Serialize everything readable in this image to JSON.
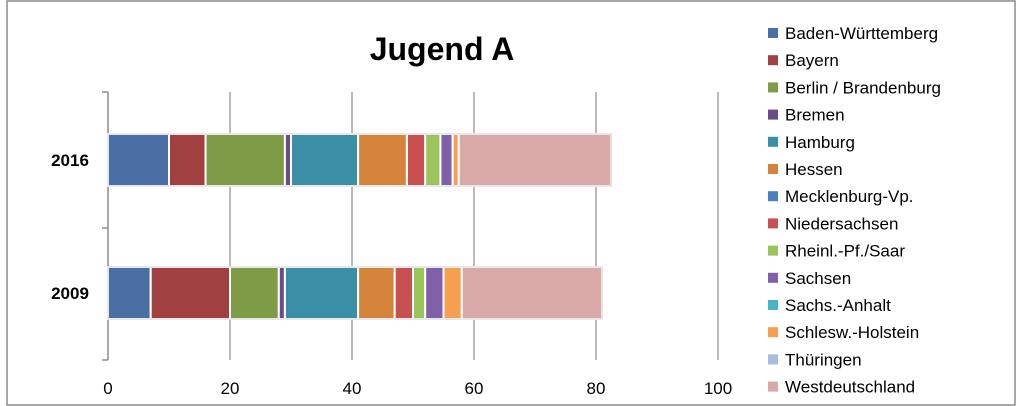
{
  "chart_data": {
    "type": "bar",
    "orientation": "horizontal",
    "stacked": true,
    "title": "Jugend A",
    "xlabel": "",
    "ylabel": "",
    "xlim": [
      0,
      100
    ],
    "xticks": [
      0,
      20,
      40,
      60,
      80,
      100
    ],
    "grid": true,
    "legend_position": "right",
    "categories": [
      "2016",
      "2009"
    ],
    "series": [
      {
        "name": "Baden-Württemberg",
        "color": "#4A6FA5",
        "values": [
          10,
          7
        ]
      },
      {
        "name": "Bayern",
        "color": "#A04040",
        "values": [
          6,
          13
        ]
      },
      {
        "name": "Berlin / Brandenburg",
        "color": "#7E9C45",
        "values": [
          13,
          8
        ]
      },
      {
        "name": "Bremen",
        "color": "#6A4C8C",
        "values": [
          1,
          1
        ]
      },
      {
        "name": "Hamburg",
        "color": "#3A8FA6",
        "values": [
          11,
          12
        ]
      },
      {
        "name": "Hessen",
        "color": "#D3833A",
        "values": [
          8,
          6
        ]
      },
      {
        "name": "Mecklenburg-Vp.",
        "color": "#4A7FC0",
        "values": [
          0,
          0
        ]
      },
      {
        "name": "Niedersachsen",
        "color": "#C85050",
        "values": [
          3,
          3
        ]
      },
      {
        "name": "Rheinl.-Pf./Saar",
        "color": "#9BC55A",
        "values": [
          2.5,
          2
        ]
      },
      {
        "name": "Sachsen",
        "color": "#8060A8",
        "values": [
          2,
          3
        ]
      },
      {
        "name": "Sachs.-Anhalt",
        "color": "#47B5C9",
        "values": [
          0,
          0
        ]
      },
      {
        "name": "Schlesw.-Holstein",
        "color": "#F5A050",
        "values": [
          1,
          3
        ]
      },
      {
        "name": "Thüringen",
        "color": "#A9BCDD",
        "values": [
          0,
          0
        ]
      },
      {
        "name": "Westdeutschland",
        "color": "#D9A9A8",
        "values": [
          25,
          23
        ]
      }
    ]
  }
}
